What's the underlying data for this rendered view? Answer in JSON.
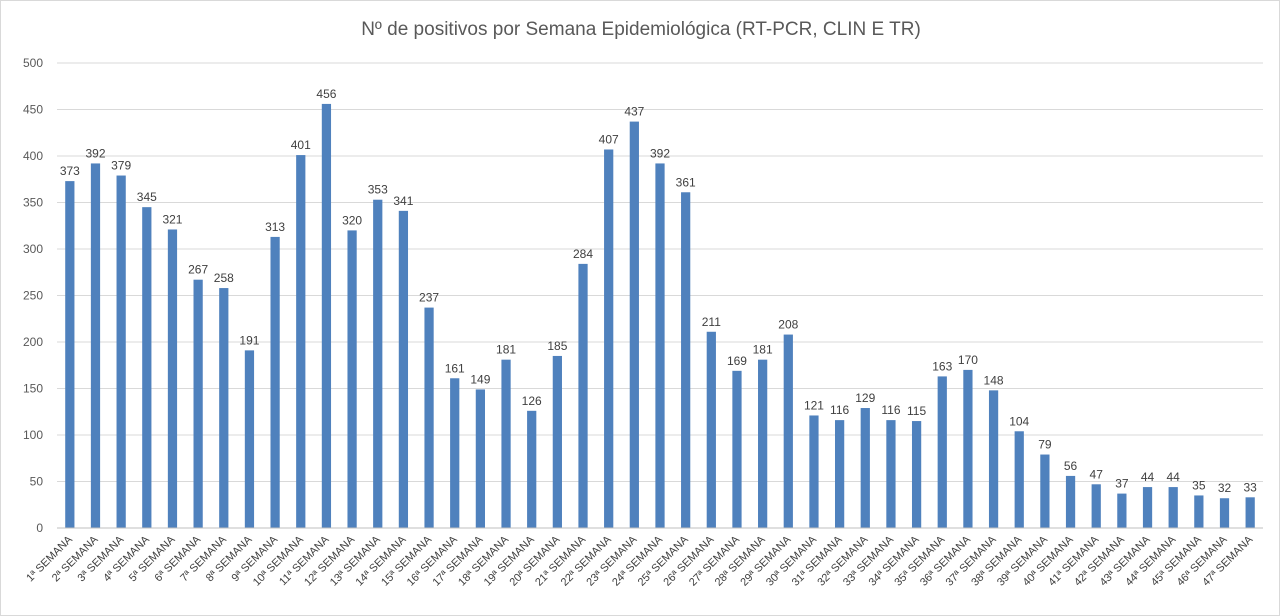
{
  "chart_data": {
    "type": "bar",
    "title": "Nº de positivos por Semana Epidemiológica (RT-PCR, CLIN E TR)",
    "xlabel": "",
    "ylabel": "",
    "ylim": [
      0,
      500
    ],
    "yticks": [
      0,
      50,
      100,
      150,
      200,
      250,
      300,
      350,
      400,
      450,
      500
    ],
    "grid": true,
    "bar_color": "#4f81bd",
    "categories": [
      "1ª SEMANA",
      "2ª SEMANA",
      "3ª SEMANA",
      "4ª SEMANA",
      "5ª SEMANA",
      "6ª SEMANA",
      "7ª SEMANA",
      "8ª SEMANA",
      "9ª SEMANA",
      "10ª SEMANA",
      "11ª SEMANA",
      "12ª SEMANA",
      "13ª SEMANA",
      "14ª SEMANA",
      "15ª SEMANA",
      "16ª SEMANA",
      "17ª SEMANA",
      "18ª SEMANA",
      "19ª SEMANA",
      "20ª SEMANA",
      "21ª SEMANA",
      "22ª SEMANA",
      "23ª SEMANA",
      "24ª SEMANA",
      "25ª SEMANA",
      "26ª SEMANA",
      "27ª SEMANA",
      "28ª SEMANA",
      "29ª SEMANA",
      "30ª SEMANA",
      "31ª SEMANA",
      "32ª SEMANA",
      "33ª SEMANA",
      "34ª SEMANA",
      "35ª SEMANA",
      "36ª SEMANA",
      "37ª SEMANA",
      "38ª SEMANA",
      "39ª SEMANA",
      "40ª SEMANA",
      "41ª SEMANA",
      "42ª SEMANA",
      "43ª SEMANA",
      "44ª SEMANA",
      "45ª SEMANA",
      "46ª SEMANA",
      "47ª SEMANA"
    ],
    "values": [
      373,
      392,
      379,
      345,
      321,
      267,
      258,
      191,
      313,
      401,
      456,
      320,
      353,
      341,
      237,
      161,
      149,
      181,
      126,
      185,
      284,
      407,
      437,
      392,
      361,
      211,
      169,
      181,
      208,
      121,
      116,
      129,
      116,
      115,
      163,
      170,
      148,
      104,
      79,
      56,
      47,
      37,
      44,
      44,
      35,
      32,
      33
    ]
  }
}
